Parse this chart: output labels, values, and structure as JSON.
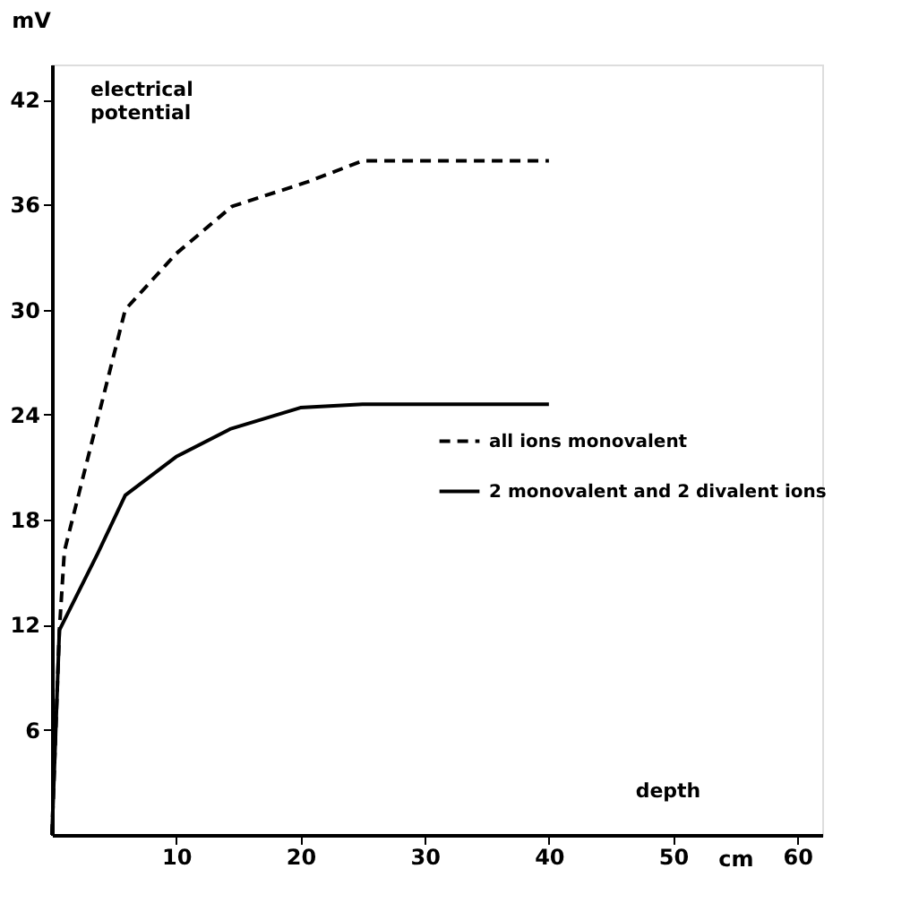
{
  "chart_data": {
    "type": "line",
    "ylabel": "mV",
    "xlabel": "cm",
    "annotations": [
      "electrical potential",
      "depth"
    ],
    "xlim": [
      0,
      62
    ],
    "xticks": [
      10,
      20,
      30,
      40,
      50,
      60
    ],
    "ylim": [
      0,
      44
    ],
    "yticks": [
      6,
      12,
      18,
      24,
      30,
      36,
      42
    ],
    "grid": false,
    "legend": "right",
    "series": [
      {
        "name": "all ions monovalent",
        "color": "#000000",
        "line_style": "dashed",
        "x": [
          0,
          0.6,
          1,
          5.9,
          10,
          14.5,
          20.6,
          25,
          40
        ],
        "values": [
          0,
          11.7,
          16.2,
          30,
          33.2,
          35.9,
          37.3,
          38.5,
          38.5
        ]
      },
      {
        "name": "2 monovalent and 2 divalent ions",
        "color": "#000000",
        "line_style": "solid",
        "x": [
          0,
          0.6,
          3.7,
          5.9,
          10,
          14.4,
          20,
          25,
          40
        ],
        "values": [
          0,
          11.7,
          16.1,
          19.4,
          21.6,
          23.2,
          24.4,
          24.6,
          24.6
        ]
      }
    ]
  }
}
